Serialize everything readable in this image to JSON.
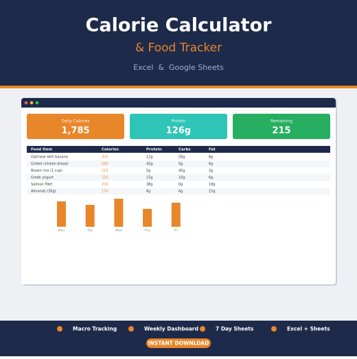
{
  "header": {
    "title": "Calorie Calculator",
    "subtitle": "& Food Tracker",
    "tagline": "Excel  &  Google Sheets"
  },
  "stats": [
    {
      "label": "Daily Calories",
      "value": "1,785",
      "color": "#e8862a"
    },
    {
      "label": "Protein",
      "value": "126g",
      "color": "#2ec4b6"
    },
    {
      "label": "Remaining",
      "value": "215",
      "color": "#27ae60"
    }
  ],
  "table": {
    "columns": [
      "Food Item",
      "Calories",
      "Protein",
      "Carbs",
      "Fat"
    ],
    "rows": [
      [
        "Oatmeal with banana",
        "350",
        "12g",
        "58g",
        "8g"
      ],
      [
        "Grilled chicken breast",
        "280",
        "42g",
        "0g",
        "6g"
      ],
      [
        "Brown rice (1 cup)",
        "215",
        "5g",
        "45g",
        "2g"
      ],
      [
        "Greek yogurt",
        "150",
        "15g",
        "10g",
        "6g"
      ],
      [
        "Salmon fillet",
        "350",
        "38g",
        "0g",
        "18g"
      ],
      [
        "Almonds (30g)",
        "170",
        "6g",
        "6g",
        "15g"
      ]
    ]
  },
  "chart_data": {
    "type": "bar",
    "categories": [
      "Mon",
      "Tue",
      "Wed",
      "Thu",
      "Fri"
    ],
    "values": [
      1650,
      1420,
      1820,
      1160,
      1560
    ],
    "ylim": [
      0,
      2000
    ],
    "color": "#e8862a"
  },
  "features": [
    "Macro Tracking",
    "Weekly Dashboard",
    "7 Day Sheets",
    "Excel + Sheets"
  ],
  "button": "INSTANT DOWNLOAD"
}
